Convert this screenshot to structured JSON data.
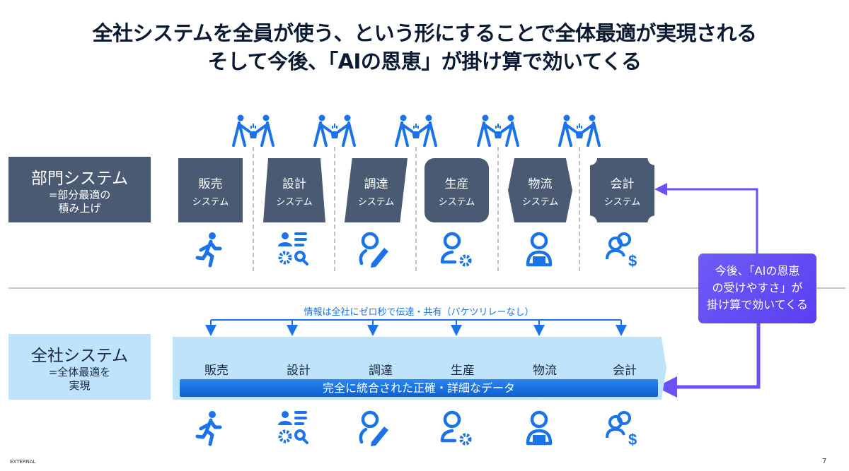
{
  "title": {
    "line1": "全社システムを全員が使う、という形にすることで全体最適が実現される",
    "line2": "そして今後、「AIの恩恵」が掛け算で効いてくる"
  },
  "dept": {
    "label": "部門システム",
    "sub1": "=部分最適の",
    "sub2": "積み上げ"
  },
  "company": {
    "label": "全社システム",
    "sub1": "=全体最適を",
    "sub2": "実現"
  },
  "systems": [
    {
      "name": "販売",
      "suffix": "システム",
      "icon": "running-person-icon"
    },
    {
      "name": "設計",
      "suffix": "システム",
      "icon": "person-gear-search-icon"
    },
    {
      "name": "調達",
      "suffix": "システム",
      "icon": "person-pencil-icon"
    },
    {
      "name": "生産",
      "suffix": "システム",
      "icon": "person-gear-icon"
    },
    {
      "name": "物流",
      "suffix": "システム",
      "icon": "person-laptop-icon"
    },
    {
      "name": "会計",
      "suffix": "システム",
      "icon": "people-dollar-icon"
    }
  ],
  "handoff_icon": "teamwork-handoff-icon",
  "share_note": "情報は全社にゼロ秒で伝達・共有（バケツリレーなし）",
  "data_bar": "完全に統合された正確・詳細なデータ",
  "ai_callout": {
    "line1": "今後、「AIの恩恵",
    "line2": "の受けやすさ」が",
    "line3": "掛け算で効いてくる"
  },
  "colors": {
    "dept": "#4a5a72",
    "company": "#bfe3fb",
    "accent": "#1a73e8",
    "ai": "#6a52f5"
  },
  "footer": {
    "label": "EXTERNAL",
    "page": "7"
  }
}
